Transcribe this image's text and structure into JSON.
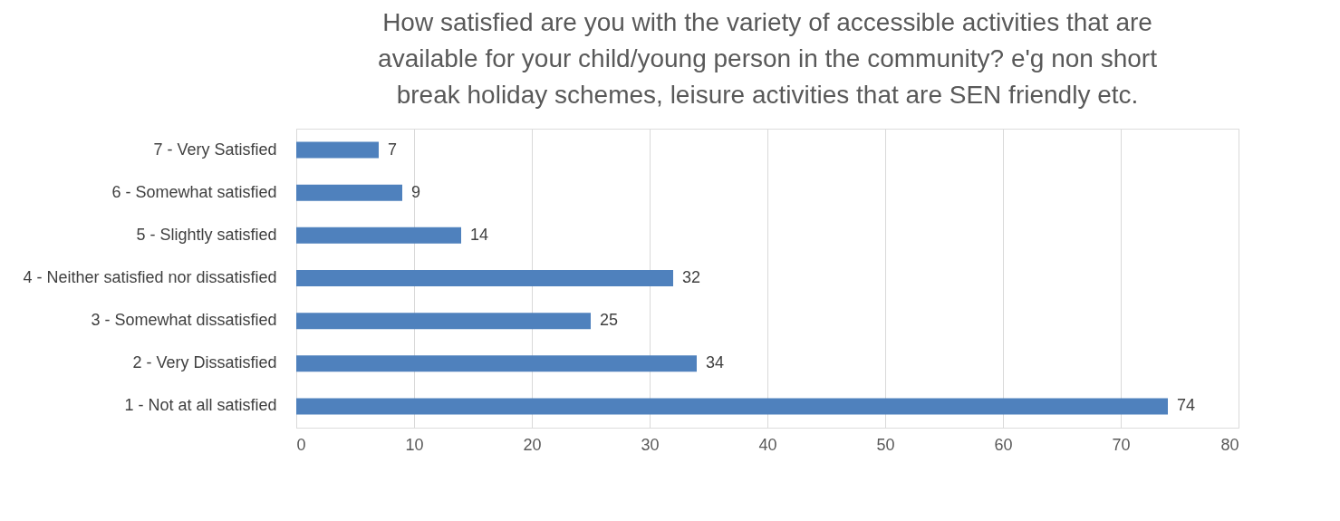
{
  "chart_data": {
    "type": "bar",
    "orientation": "horizontal",
    "title": "How satisfied are you with the variety of accessible activities that are available for your child/young person in the community? e'g non short break holiday schemes, leisure activities that are SEN friendly etc.",
    "categories": [
      "7 - Very Satisfied",
      "6 - Somewhat satisfied",
      "5 - Slightly satisfied",
      "4 - Neither satisfied nor dissatisfied",
      "3 - Somewhat dissatisfied",
      "2 - Very Dissatisfied",
      "1 - Not at all satisfied"
    ],
    "values": [
      7,
      9,
      14,
      32,
      25,
      34,
      74
    ],
    "color": "#4f81bd",
    "xlim": [
      0,
      80
    ],
    "xticks": [
      0,
      10,
      20,
      30,
      40,
      50,
      60,
      70,
      80
    ],
    "grid": "x",
    "data_labels": true
  }
}
